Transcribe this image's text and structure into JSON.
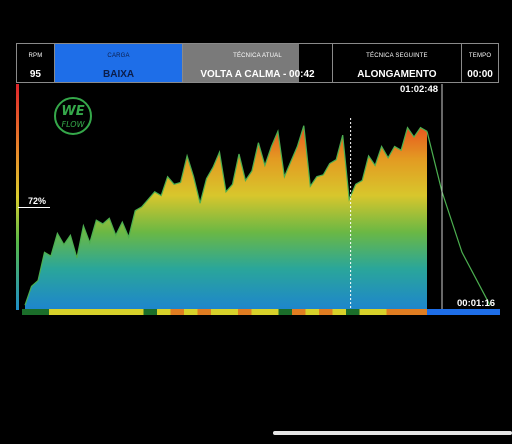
{
  "header": {
    "rpm": {
      "label": "RPM",
      "value": "95"
    },
    "carga": {
      "label": "CARGA",
      "value": "BAIXA"
    },
    "tecnica_atual": {
      "label": "TÉCNICA ATUAL",
      "value": "VOLTA A CALMA - 00:42"
    },
    "tecnica_seguinte": {
      "label": "TÉCNICA SEGUINTE",
      "value": "ALONGAMENTO"
    },
    "tempo": {
      "label": "TEMPO",
      "value": "00:00"
    }
  },
  "intensity_marker": "72%",
  "elapsed_time": "01:02:48",
  "remaining_time": "00:01:16",
  "logo": {
    "text": "WE FLOW",
    "color": "#35a84a"
  },
  "colors": {
    "carga_bg": "#1e6ee8",
    "atual_bg": "#7a7a7a",
    "line": "#4caf50"
  },
  "chart_data": {
    "type": "area",
    "x": [
      0,
      1,
      2,
      3,
      4,
      5,
      6,
      7,
      8,
      9,
      10,
      11,
      12,
      13,
      14,
      15,
      16,
      17,
      18,
      19,
      20,
      21,
      22,
      23,
      24,
      25,
      26,
      27,
      28,
      29,
      30,
      31,
      32,
      33,
      34,
      35,
      36,
      37,
      38,
      39,
      40,
      41,
      42,
      43,
      44,
      45,
      46,
      47,
      48,
      49,
      50,
      51,
      52,
      53,
      54,
      55,
      56,
      57,
      58,
      59,
      60,
      61,
      62
    ],
    "values": [
      2,
      12,
      15,
      30,
      28,
      40,
      34,
      39,
      27,
      44,
      35,
      47,
      45,
      48,
      39,
      46,
      38,
      52,
      54,
      58,
      62,
      60,
      70,
      66,
      67,
      81,
      70,
      56,
      69,
      75,
      83,
      62,
      66,
      82,
      68,
      73,
      88,
      76,
      86,
      94,
      70,
      78,
      86,
      97,
      65,
      70,
      71,
      77,
      79,
      92,
      58,
      66,
      68,
      81,
      76,
      86,
      80,
      86,
      84,
      96,
      91,
      96,
      94
    ],
    "final_segment": [
      94,
      62,
      30,
      2
    ],
    "zones": [
      "green",
      "green",
      "yellow",
      "yellow",
      "yellow",
      "yellow",
      "yellow",
      "yellow",
      "yellow",
      "green",
      "yellow",
      "orange",
      "yellow",
      "orange",
      "yellow",
      "yellow",
      "orange",
      "yellow",
      "yellow",
      "green",
      "orange",
      "yellow",
      "orange",
      "yellow",
      "green",
      "yellow",
      "yellow",
      "orange",
      "orange",
      "orange"
    ],
    "marker_fraction": 0.81,
    "ylim": [
      0,
      100
    ]
  }
}
